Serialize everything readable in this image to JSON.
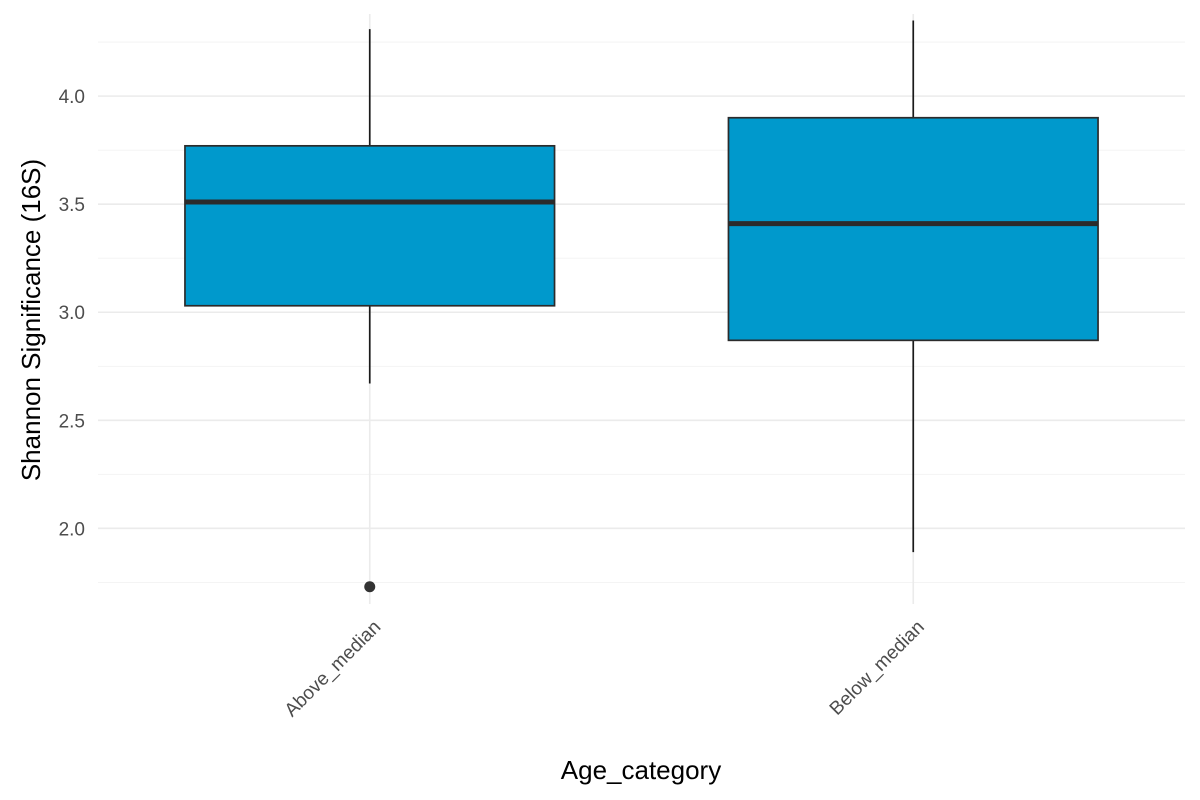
{
  "chart_data": {
    "type": "boxplot",
    "xlabel": "Age_category",
    "ylabel": "Shannon Significance (16S)",
    "categories": [
      "Above_median",
      "Below_median"
    ],
    "ylim": [
      1.65,
      4.38
    ],
    "yticks": [
      2.0,
      2.5,
      3.0,
      3.5,
      4.0
    ],
    "ytick_labels": [
      "2.0",
      "2.5",
      "3.0",
      "3.5",
      "4.0"
    ],
    "boxes": [
      {
        "category": "Above_median",
        "whisker_low": 2.67,
        "q1": 3.03,
        "median": 3.51,
        "q3": 3.77,
        "whisker_high": 4.31,
        "outliers": [
          1.73
        ]
      },
      {
        "category": "Below_median",
        "whisker_low": 1.89,
        "q1": 2.87,
        "median": 3.41,
        "q3": 3.9,
        "whisker_high": 4.35,
        "outliers": []
      }
    ],
    "fill_color": "#0099CC",
    "line_color": "#2b2b2b",
    "grid": true,
    "legend": "none"
  }
}
